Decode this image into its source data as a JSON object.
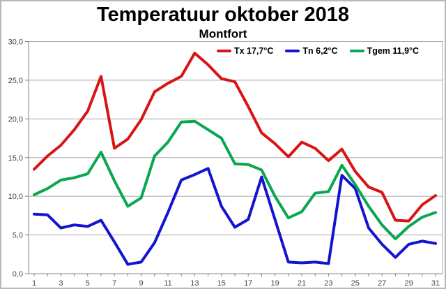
{
  "title": "Temperatuur oktober 2018",
  "subtitle": "Montfort",
  "legend": [
    {
      "label": "Tx 17,7°C",
      "color": "#d81414"
    },
    {
      "label": "Tn 6,2°C",
      "color": "#1414d0"
    },
    {
      "label": "Tgem 11,9°C",
      "color": "#0aa650"
    }
  ],
  "chart_data": {
    "type": "line",
    "title": "Temperatuur oktober 2018",
    "subtitle": "Montfort",
    "xlabel": "",
    "ylabel": "",
    "grid": true,
    "legend_position": "top-inside",
    "x": [
      1,
      2,
      3,
      4,
      5,
      6,
      7,
      8,
      9,
      10,
      11,
      12,
      13,
      14,
      15,
      16,
      17,
      18,
      19,
      20,
      21,
      22,
      23,
      24,
      25,
      26,
      27,
      28,
      29,
      30,
      31
    ],
    "x_tick_labels": [
      "1",
      "3",
      "5",
      "7",
      "9",
      "11",
      "13",
      "15",
      "17",
      "19",
      "21",
      "23",
      "25",
      "27",
      "29",
      "31"
    ],
    "ylim": [
      0,
      30
    ],
    "y_ticks": [
      0,
      5,
      10,
      15,
      20,
      25,
      30
    ],
    "y_tick_labels": [
      "0,0",
      "5,0",
      "10,0",
      "15,0",
      "20,0",
      "25,0",
      "30,0"
    ],
    "series": [
      {
        "name": "Tx",
        "legend": "Tx 17,7°C",
        "mean_label": "17,7°C",
        "color": "#d81414",
        "values": [
          13.5,
          15.2,
          16.6,
          18.6,
          21.0,
          25.5,
          16.2,
          17.4,
          19.9,
          23.5,
          24.6,
          25.5,
          28.5,
          27.0,
          25.2,
          24.8,
          21.6,
          18.2,
          16.8,
          15.1,
          17.0,
          16.2,
          14.6,
          16.1,
          13.2,
          11.2,
          10.5,
          6.9,
          6.8,
          8.9,
          10.1
        ]
      },
      {
        "name": "Tn",
        "legend": "Tn 6,2°C",
        "mean_label": "6,2°C",
        "color": "#1414d0",
        "values": [
          7.7,
          7.6,
          5.9,
          6.3,
          6.1,
          6.9,
          4.1,
          1.2,
          1.5,
          4.0,
          7.9,
          12.1,
          12.8,
          13.6,
          8.7,
          6.0,
          7.0,
          12.5,
          7.0,
          1.5,
          1.4,
          1.5,
          1.3,
          12.7,
          11.0,
          5.9,
          3.8,
          2.1,
          3.8,
          4.2,
          3.9
        ]
      },
      {
        "name": "Tgem",
        "legend": "Tgem 11,9°C",
        "mean_label": "11,9°C",
        "color": "#0aa650",
        "values": [
          10.2,
          11.0,
          12.1,
          12.4,
          12.9,
          15.7,
          12.0,
          8.7,
          9.8,
          15.2,
          17.0,
          19.6,
          19.7,
          18.6,
          17.5,
          14.2,
          14.1,
          13.4,
          10.0,
          7.2,
          8.0,
          10.4,
          10.6,
          14.0,
          11.5,
          8.7,
          6.3,
          4.5,
          6.1,
          7.3,
          7.9
        ]
      }
    ]
  }
}
